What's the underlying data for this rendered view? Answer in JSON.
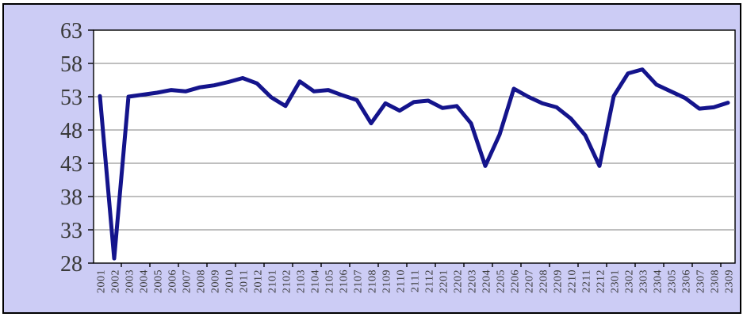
{
  "chart_data": {
    "type": "line",
    "title": "",
    "xlabel": "",
    "ylabel": "",
    "categories": [
      "2001",
      "2002",
      "2003",
      "2004",
      "2005",
      "2006",
      "2007",
      "2008",
      "2009",
      "2010",
      "2011",
      "2012",
      "2101",
      "2102",
      "2103",
      "2104",
      "2105",
      "2106",
      "2107",
      "2108",
      "2109",
      "2110",
      "2111",
      "2112",
      "2201",
      "2202",
      "2203",
      "2204",
      "2205",
      "2206",
      "2207",
      "2208",
      "2209",
      "2210",
      "2211",
      "2212",
      "2301",
      "2302",
      "2303",
      "2304",
      "2305",
      "2306",
      "2307",
      "2308",
      "2309"
    ],
    "values": [
      53.1,
      28.7,
      53.0,
      53.3,
      53.6,
      54.0,
      53.8,
      54.4,
      54.7,
      55.2,
      55.8,
      55.0,
      52.9,
      51.6,
      55.3,
      53.8,
      54.0,
      53.2,
      52.5,
      49.0,
      52.0,
      50.9,
      52.2,
      52.4,
      51.3,
      51.6,
      49.0,
      42.6,
      47.3,
      54.2,
      53.0,
      52.0,
      51.4,
      49.7,
      47.2,
      42.6,
      53.1,
      56.5,
      57.1,
      54.8,
      53.8,
      52.8,
      51.2,
      51.4,
      52.1
    ],
    "ylim": [
      28,
      63
    ],
    "ytick_step": 5,
    "ytick_labels": [
      "28",
      "33",
      "38",
      "43",
      "48",
      "53",
      "58",
      "63"
    ],
    "grid": true,
    "legend": null,
    "colors": {
      "line": "#14148c",
      "background": "#ccccf5",
      "plot_background": "#ffffff",
      "gridline": "#7f7f7f",
      "axis": "#000000",
      "tick_text": "#3a3a3a",
      "outer_border": "#000000"
    }
  }
}
